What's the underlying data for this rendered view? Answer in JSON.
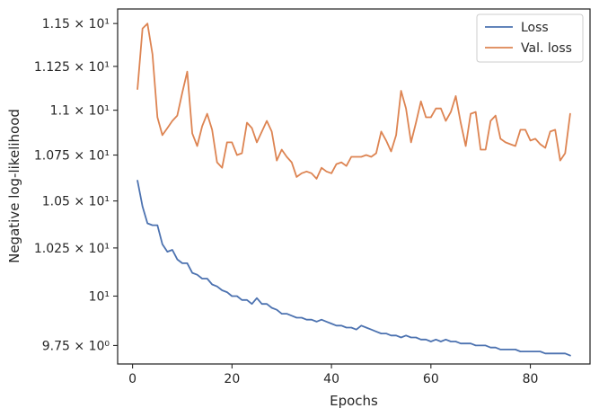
{
  "chart_data": {
    "type": "line",
    "xlabel": "Epochs",
    "ylabel": "Negative log-likelihood",
    "xlim": [
      -3,
      92
    ],
    "ylim": [
      9.658,
      11.586
    ],
    "y_scale": "log",
    "grid": false,
    "legend_position": "top-right",
    "x_ticks": [
      {
        "value": 0,
        "label": "0"
      },
      {
        "value": 20,
        "label": "20"
      },
      {
        "value": 40,
        "label": "40"
      },
      {
        "value": 60,
        "label": "60"
      },
      {
        "value": 80,
        "label": "80"
      }
    ],
    "y_ticks": [
      {
        "value": 9.75,
        "label": "9.75 × 10⁰"
      },
      {
        "value": 10.0,
        "label": "10¹"
      },
      {
        "value": 10.25,
        "label": "1.025 × 10¹"
      },
      {
        "value": 10.5,
        "label": "1.05 × 10¹"
      },
      {
        "value": 10.75,
        "label": "1.075 × 10¹"
      },
      {
        "value": 11.0,
        "label": "1.1 × 10¹"
      },
      {
        "value": 11.25,
        "label": "1.125 × 10¹"
      },
      {
        "value": 11.5,
        "label": "1.15 × 10¹"
      }
    ],
    "series": [
      {
        "name": "Loss",
        "color": "#4c72b0",
        "x": [
          1,
          2,
          3,
          4,
          5,
          6,
          7,
          8,
          9,
          10,
          11,
          12,
          13,
          14,
          15,
          16,
          17,
          18,
          19,
          20,
          21,
          22,
          23,
          24,
          25,
          26,
          27,
          28,
          29,
          30,
          31,
          32,
          33,
          34,
          35,
          36,
          37,
          38,
          39,
          40,
          41,
          42,
          43,
          44,
          45,
          46,
          47,
          48,
          49,
          50,
          51,
          52,
          53,
          54,
          55,
          56,
          57,
          58,
          59,
          60,
          61,
          62,
          63,
          64,
          65,
          66,
          67,
          68,
          69,
          70,
          71,
          72,
          73,
          74,
          75,
          76,
          77,
          78,
          79,
          80,
          81,
          82,
          83,
          84,
          85,
          86,
          87,
          88
        ],
        "values": [
          10.61,
          10.47,
          10.38,
          10.37,
          10.37,
          10.27,
          10.23,
          10.24,
          10.19,
          10.17,
          10.17,
          10.12,
          10.11,
          10.09,
          10.09,
          10.06,
          10.05,
          10.03,
          10.02,
          10.0,
          10.0,
          9.98,
          9.98,
          9.96,
          9.99,
          9.96,
          9.96,
          9.94,
          9.93,
          9.91,
          9.91,
          9.9,
          9.89,
          9.89,
          9.88,
          9.88,
          9.87,
          9.88,
          9.87,
          9.86,
          9.85,
          9.85,
          9.84,
          9.84,
          9.83,
          9.85,
          9.84,
          9.83,
          9.82,
          9.81,
          9.81,
          9.8,
          9.8,
          9.79,
          9.8,
          9.79,
          9.79,
          9.78,
          9.78,
          9.77,
          9.78,
          9.77,
          9.78,
          9.77,
          9.77,
          9.76,
          9.76,
          9.76,
          9.75,
          9.75,
          9.75,
          9.74,
          9.74,
          9.73,
          9.73,
          9.73,
          9.73,
          9.72,
          9.72,
          9.72,
          9.72,
          9.72,
          9.71,
          9.71,
          9.71,
          9.71,
          9.71,
          9.7
        ]
      },
      {
        "name": "Val. loss",
        "color": "#dd8452",
        "x": [
          1,
          2,
          3,
          4,
          5,
          6,
          7,
          8,
          9,
          10,
          11,
          12,
          13,
          14,
          15,
          16,
          17,
          18,
          19,
          20,
          21,
          22,
          23,
          24,
          25,
          26,
          27,
          28,
          29,
          30,
          31,
          32,
          33,
          34,
          35,
          36,
          37,
          38,
          39,
          40,
          41,
          42,
          43,
          44,
          45,
          46,
          47,
          48,
          49,
          50,
          51,
          52,
          53,
          54,
          55,
          56,
          57,
          58,
          59,
          60,
          61,
          62,
          63,
          64,
          65,
          66,
          67,
          68,
          69,
          70,
          71,
          72,
          73,
          74,
          75,
          76,
          77,
          78,
          79,
          80,
          81,
          82,
          83,
          84,
          85,
          86,
          87,
          88
        ],
        "values": [
          11.12,
          11.47,
          11.5,
          11.32,
          10.96,
          10.86,
          10.9,
          10.94,
          10.97,
          11.1,
          11.22,
          10.87,
          10.8,
          10.91,
          10.98,
          10.89,
          10.71,
          10.68,
          10.82,
          10.82,
          10.75,
          10.76,
          10.93,
          10.9,
          10.82,
          10.88,
          10.94,
          10.88,
          10.72,
          10.78,
          10.74,
          10.71,
          10.63,
          10.65,
          10.66,
          10.65,
          10.62,
          10.68,
          10.66,
          10.65,
          10.7,
          10.71,
          10.69,
          10.74,
          10.74,
          10.74,
          10.75,
          10.74,
          10.76,
          10.88,
          10.83,
          10.77,
          10.86,
          11.11,
          11.01,
          10.82,
          10.93,
          11.05,
          10.96,
          10.96,
          11.01,
          11.01,
          10.94,
          10.99,
          11.08,
          10.93,
          10.8,
          10.98,
          10.99,
          10.78,
          10.78,
          10.94,
          10.97,
          10.84,
          10.82,
          10.81,
          10.8,
          10.89,
          10.89,
          10.83,
          10.84,
          10.81,
          10.79,
          10.88,
          10.89,
          10.72,
          10.76,
          10.98
        ]
      }
    ]
  }
}
